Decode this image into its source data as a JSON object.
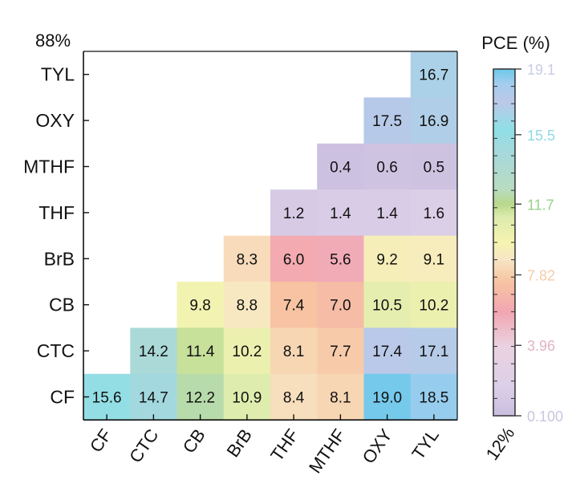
{
  "chart_data": {
    "type": "heatmap",
    "title": "",
    "corner_top_left": "88%",
    "corner_bottom_right": "12%",
    "rows": [
      "TYL",
      "OXY",
      "MTHF",
      "THF",
      "BrB",
      "CB",
      "CTC",
      "CF"
    ],
    "columns": [
      "CF",
      "CTC",
      "CB",
      "BrB",
      "THF",
      "MTHF",
      "OXY",
      "TYL"
    ],
    "values": [
      [
        null,
        null,
        null,
        null,
        null,
        null,
        null,
        16.7
      ],
      [
        null,
        null,
        null,
        null,
        null,
        null,
        17.5,
        16.9
      ],
      [
        null,
        null,
        null,
        null,
        null,
        0.4,
        0.6,
        0.5
      ],
      [
        null,
        null,
        null,
        null,
        1.2,
        1.4,
        1.4,
        1.6
      ],
      [
        null,
        null,
        null,
        8.3,
        6.0,
        5.6,
        9.2,
        9.1
      ],
      [
        null,
        null,
        9.8,
        8.8,
        7.4,
        7.0,
        10.5,
        10.2
      ],
      [
        null,
        14.2,
        11.4,
        10.2,
        8.1,
        7.7,
        17.4,
        17.1
      ],
      [
        15.6,
        14.7,
        12.2,
        10.9,
        8.4,
        8.1,
        19.0,
        18.5
      ]
    ],
    "colorbar": {
      "label": "PCE (%)",
      "min": 0.1,
      "max": 19.1,
      "ticks": [
        {
          "value": 19.1,
          "label": "19.1",
          "color": "#c8cce6"
        },
        {
          "value": 15.5,
          "label": "15.5",
          "color": "#8fd9e3"
        },
        {
          "value": 11.7,
          "label": "11.7",
          "color": "#9ad08f"
        },
        {
          "value": 7.82,
          "label": "7.82",
          "color": "#f5cba8"
        },
        {
          "value": 3.96,
          "label": "3.96",
          "color": "#e2b3c3"
        },
        {
          "value": 0.1,
          "label": "0.100",
          "color": "#c9c6df"
        }
      ],
      "stops": [
        {
          "value": 0.1,
          "color": "#c9bedf"
        },
        {
          "value": 1.8,
          "color": "#ddd0e8"
        },
        {
          "value": 3.9,
          "color": "#ead2e0"
        },
        {
          "value": 5.8,
          "color": "#f2a6b2"
        },
        {
          "value": 7.4,
          "color": "#f7c3a2"
        },
        {
          "value": 8.7,
          "color": "#f7e6c4"
        },
        {
          "value": 9.6,
          "color": "#f6f4b0"
        },
        {
          "value": 11.0,
          "color": "#dcebad"
        },
        {
          "value": 11.7,
          "color": "#b8d88b"
        },
        {
          "value": 12.5,
          "color": "#b8dcbf"
        },
        {
          "value": 14.5,
          "color": "#a7d8dc"
        },
        {
          "value": 15.8,
          "color": "#8fdfe6"
        },
        {
          "value": 17.3,
          "color": "#bcc8e8"
        },
        {
          "value": 18.3,
          "color": "#a3cdee"
        },
        {
          "value": 19.1,
          "color": "#6ec8ea"
        }
      ]
    }
  }
}
